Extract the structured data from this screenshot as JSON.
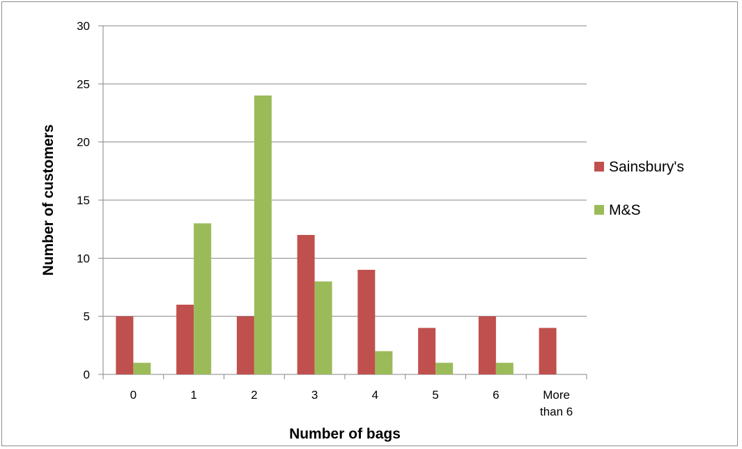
{
  "chart_data": {
    "type": "bar",
    "categories": [
      "0",
      "1",
      "2",
      "3",
      "4",
      "5",
      "6",
      "More than 6"
    ],
    "category_lines": [
      [
        "0"
      ],
      [
        "1"
      ],
      [
        "2"
      ],
      [
        "3"
      ],
      [
        "4"
      ],
      [
        "5"
      ],
      [
        "6"
      ],
      [
        "More",
        "than 6"
      ]
    ],
    "series": [
      {
        "name": "Sainsbury's",
        "values": [
          5,
          6,
          5,
          12,
          9,
          4,
          5,
          4
        ],
        "color": "#c0504d"
      },
      {
        "name": "M&S",
        "values": [
          1,
          13,
          24,
          8,
          2,
          1,
          1,
          null
        ],
        "color": "#9bbb59"
      }
    ],
    "title": "",
    "xlabel": "Number of bags",
    "ylabel": "Number of customers",
    "ylim": [
      0,
      30
    ],
    "yticks": [
      0,
      5,
      10,
      15,
      20,
      25,
      30
    ],
    "grid": true,
    "legend_position": "right",
    "colors": {
      "gridline": "#868686",
      "axis": "#868686"
    }
  }
}
